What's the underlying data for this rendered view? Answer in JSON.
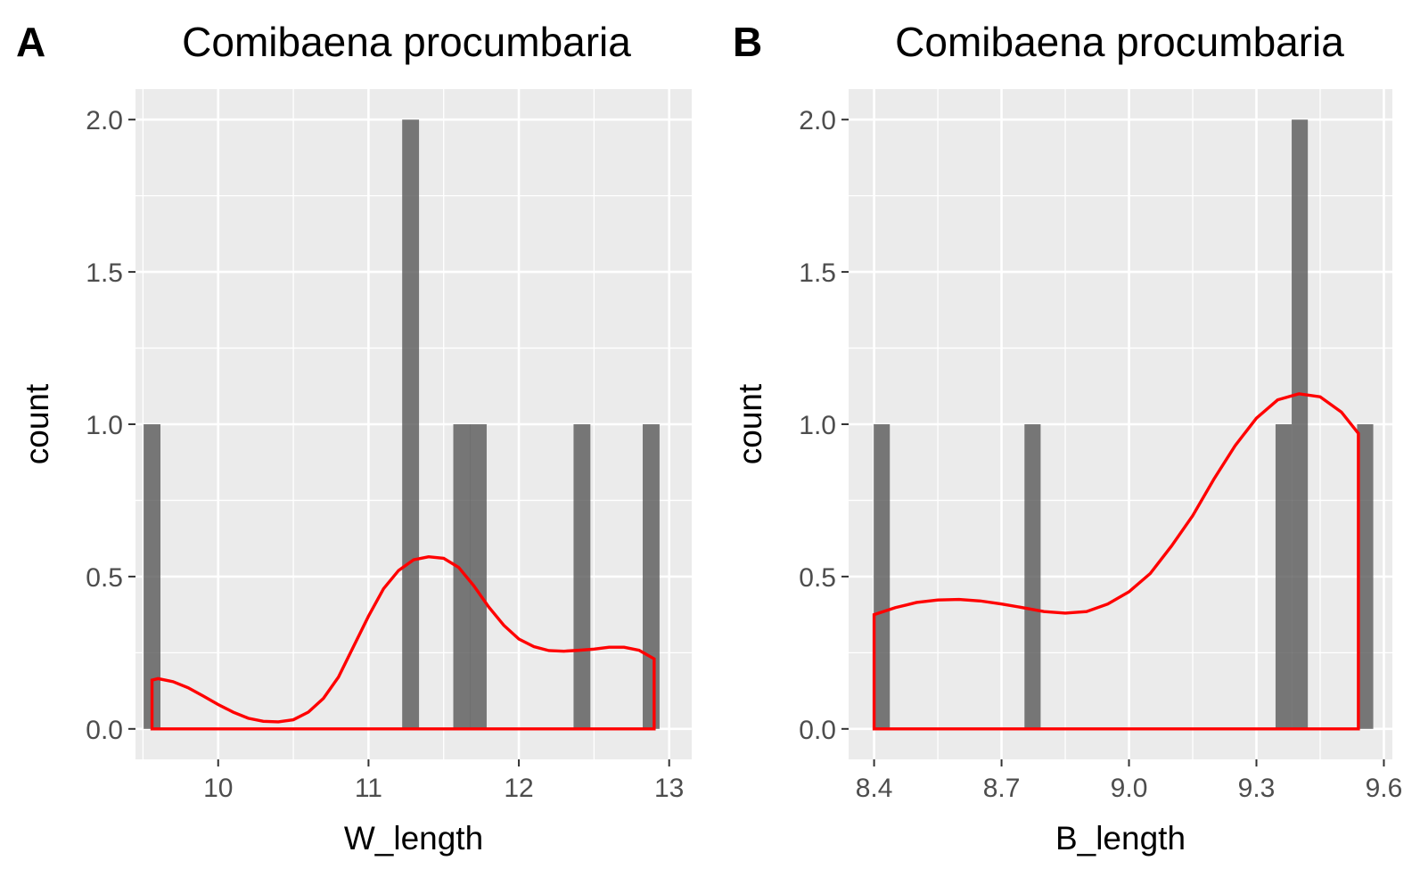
{
  "chart_data": [
    {
      "type": "bar",
      "panel_label": "A",
      "title": "Comibaena procumbaria",
      "xlabel": "W_length",
      "ylabel": "count",
      "xlim": [
        9.45,
        13.15
      ],
      "ylim": [
        -0.1,
        2.1
      ],
      "xticks": [
        10,
        11,
        12,
        13
      ],
      "xtick_labels": [
        "10",
        "11",
        "12",
        "13"
      ],
      "yticks": [
        0,
        0.5,
        1,
        1.5,
        2
      ],
      "ytick_labels": [
        "0.0",
        "0.5",
        "1.0",
        "1.5",
        "2.0"
      ],
      "bar_width": 0.112,
      "bars": [
        {
          "x": 9.56,
          "count": 1
        },
        {
          "x": 11.28,
          "count": 2
        },
        {
          "x": 11.62,
          "count": 1
        },
        {
          "x": 11.73,
          "count": 1
        },
        {
          "x": 12.42,
          "count": 1
        },
        {
          "x": 12.88,
          "count": 1
        }
      ],
      "density": {
        "x": [
          9.56,
          9.6,
          9.7,
          9.8,
          9.9,
          10.0,
          10.1,
          10.2,
          10.3,
          10.4,
          10.5,
          10.6,
          10.7,
          10.8,
          10.9,
          11.0,
          11.1,
          11.2,
          11.3,
          11.4,
          11.5,
          11.6,
          11.7,
          11.8,
          11.9,
          12.0,
          12.1,
          12.2,
          12.3,
          12.4,
          12.5,
          12.6,
          12.7,
          12.8,
          12.9
        ],
        "y": [
          0.16,
          0.165,
          0.155,
          0.135,
          0.108,
          0.08,
          0.055,
          0.035,
          0.025,
          0.023,
          0.03,
          0.055,
          0.1,
          0.17,
          0.27,
          0.37,
          0.46,
          0.52,
          0.555,
          0.565,
          0.56,
          0.53,
          0.47,
          0.4,
          0.34,
          0.295,
          0.27,
          0.257,
          0.255,
          0.258,
          0.262,
          0.268,
          0.268,
          0.258,
          0.23
        ]
      },
      "colors": {
        "bars": "#595959",
        "density": "#ff0000",
        "panel_bg": "#ebebeb",
        "grid": "#ffffff"
      },
      "grid": true
    },
    {
      "type": "bar",
      "panel_label": "B",
      "title": "Comibaena procumbaria",
      "xlabel": "B_length",
      "ylabel": "count",
      "xlim": [
        8.34,
        9.62
      ],
      "ylim": [
        -0.1,
        2.1
      ],
      "xticks": [
        8.4,
        8.7,
        9.0,
        9.3,
        9.6
      ],
      "xtick_labels": [
        "8.4",
        "8.7",
        "9.0",
        "9.3",
        "9.6"
      ],
      "yticks": [
        0,
        0.5,
        1,
        1.5,
        2
      ],
      "ytick_labels": [
        "0.0",
        "0.5",
        "1.0",
        "1.5",
        "2.0"
      ],
      "bar_width": 0.038,
      "bars": [
        {
          "x": 8.418,
          "count": 1
        },
        {
          "x": 8.773,
          "count": 1
        },
        {
          "x": 9.364,
          "count": 1
        },
        {
          "x": 9.402,
          "count": 2
        },
        {
          "x": 9.556,
          "count": 1
        }
      ],
      "density": {
        "x": [
          8.4,
          8.45,
          8.5,
          8.55,
          8.6,
          8.65,
          8.7,
          8.75,
          8.8,
          8.85,
          8.9,
          8.95,
          9.0,
          9.05,
          9.1,
          9.15,
          9.2,
          9.25,
          9.3,
          9.35,
          9.4,
          9.45,
          9.5,
          9.54
        ],
        "y": [
          0.375,
          0.398,
          0.415,
          0.423,
          0.425,
          0.42,
          0.41,
          0.398,
          0.385,
          0.38,
          0.385,
          0.41,
          0.45,
          0.51,
          0.6,
          0.7,
          0.82,
          0.93,
          1.02,
          1.08,
          1.1,
          1.09,
          1.04,
          0.97
        ]
      },
      "colors": {
        "bars": "#595959",
        "density": "#ff0000",
        "panel_bg": "#ebebeb",
        "grid": "#ffffff"
      },
      "grid": true
    }
  ]
}
